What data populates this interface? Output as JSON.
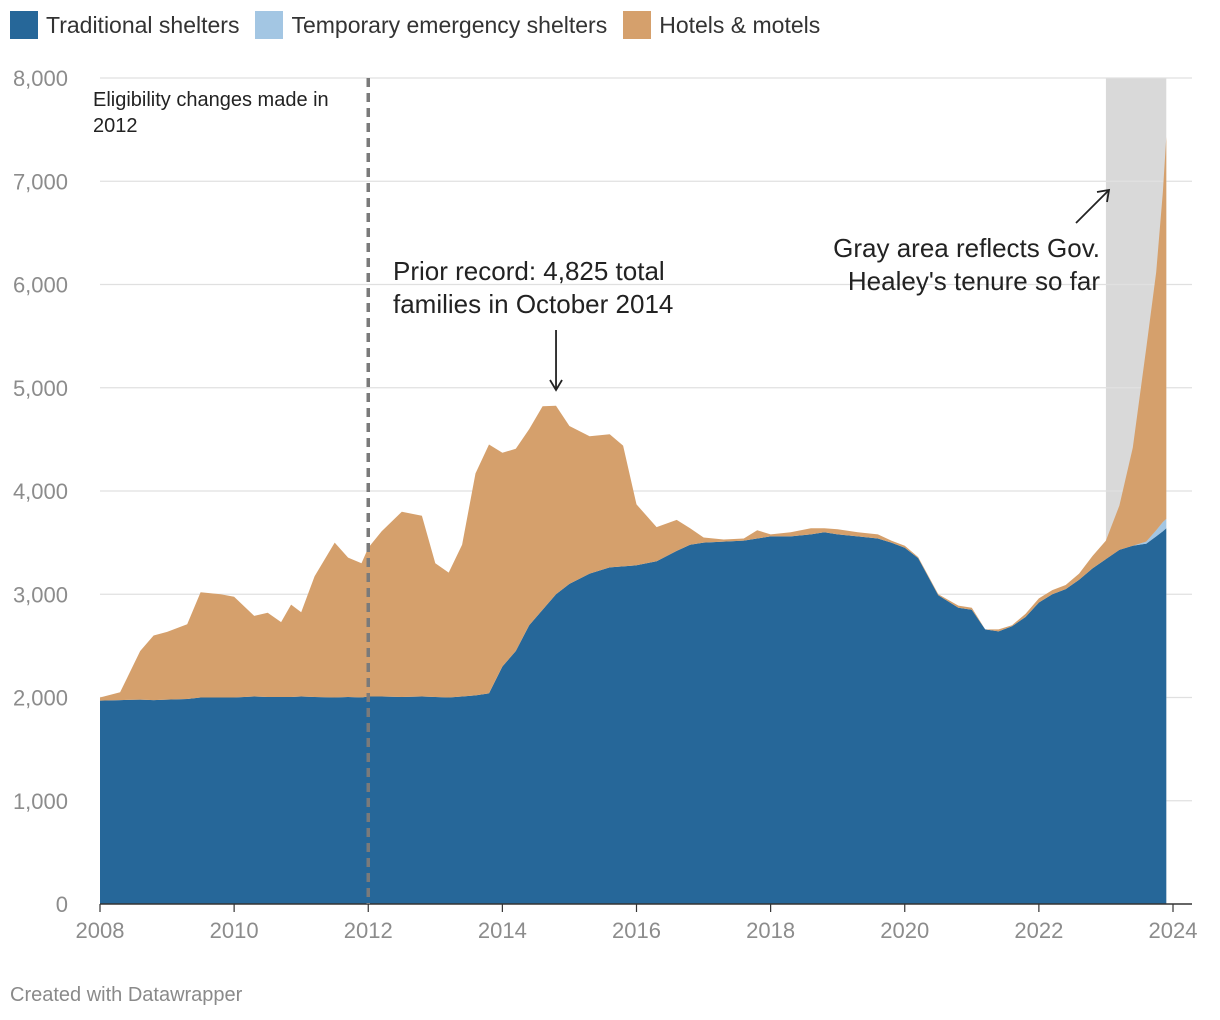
{
  "legend": [
    {
      "label": "Traditional shelters",
      "color": "#266799"
    },
    {
      "label": "Temporary emergency shelters",
      "color": "#a3c6e3"
    },
    {
      "label": "Hotels & motels",
      "color": "#d5a06c"
    }
  ],
  "annotations": {
    "eligibility": "Eligibility changes made in 2012",
    "prior_record": "Prior record: 4,825 total families in October 2014",
    "gray_area": "Gray area reflects Gov. Healey's tenure so far"
  },
  "footer": "Created with Datawrapper",
  "chart_data": {
    "type": "area",
    "stacked": true,
    "title": "",
    "xlabel": "",
    "ylabel": "",
    "xlim": [
      2008,
      2024
    ],
    "ylim": [
      0,
      8000
    ],
    "x_ticks": [
      "2008",
      "2010",
      "2012",
      "2014",
      "2016",
      "2018",
      "2020",
      "2022",
      "2024"
    ],
    "y_ticks": [
      "0",
      "1,000",
      "2,000",
      "3,000",
      "4,000",
      "5,000",
      "6,000",
      "7,000",
      "8,000"
    ],
    "grid": true,
    "highlight_range": [
      2023.0,
      2023.9
    ],
    "reference_line_x": 2012.0,
    "record_point": {
      "x": 2014.8,
      "total": 4825
    },
    "x": [
      2008.0,
      2008.3,
      2008.6,
      2008.8,
      2009.0,
      2009.3,
      2009.5,
      2009.8,
      2010.0,
      2010.3,
      2010.5,
      2010.7,
      2010.85,
      2011.0,
      2011.2,
      2011.5,
      2011.7,
      2011.9,
      2012.0,
      2012.2,
      2012.5,
      2012.8,
      2013.0,
      2013.2,
      2013.4,
      2013.6,
      2013.8,
      2014.0,
      2014.2,
      2014.4,
      2014.6,
      2014.8,
      2015.0,
      2015.3,
      2015.6,
      2015.8,
      2016.0,
      2016.3,
      2016.6,
      2016.8,
      2017.0,
      2017.3,
      2017.6,
      2017.8,
      2018.0,
      2018.3,
      2018.6,
      2018.8,
      2019.0,
      2019.3,
      2019.6,
      2019.8,
      2020.0,
      2020.2,
      2020.5,
      2020.8,
      2021.0,
      2021.2,
      2021.4,
      2021.6,
      2021.8,
      2022.0,
      2022.2,
      2022.4,
      2022.6,
      2022.8,
      2023.0,
      2023.2,
      2023.4,
      2023.6,
      2023.75,
      2023.85,
      2023.9
    ],
    "series": [
      {
        "name": "Traditional shelters",
        "values": [
          1970,
          1975,
          1980,
          1975,
          1980,
          1985,
          2000,
          2000,
          2000,
          2010,
          2005,
          2005,
          2005,
          2010,
          2005,
          2000,
          2005,
          2000,
          2010,
          2010,
          2005,
          2010,
          2005,
          2000,
          2010,
          2020,
          2040,
          2300,
          2450,
          2700,
          2850,
          3000,
          3100,
          3200,
          3260,
          3270,
          3280,
          3320,
          3420,
          3480,
          3500,
          3510,
          3520,
          3540,
          3560,
          3560,
          3580,
          3600,
          3580,
          3560,
          3540,
          3500,
          3450,
          3350,
          2990,
          2870,
          2850,
          2660,
          2640,
          2690,
          2780,
          2920,
          3000,
          3050,
          3140,
          3250,
          3340,
          3430,
          3470,
          3490,
          3560,
          3610,
          3640
        ]
      },
      {
        "name": "Temporary emergency shelters",
        "values": [
          0,
          0,
          0,
          0,
          0,
          0,
          0,
          0,
          0,
          0,
          0,
          0,
          0,
          0,
          0,
          0,
          0,
          0,
          0,
          0,
          0,
          0,
          0,
          0,
          0,
          0,
          0,
          0,
          0,
          0,
          0,
          0,
          0,
          0,
          0,
          0,
          0,
          0,
          0,
          0,
          0,
          0,
          0,
          0,
          0,
          0,
          0,
          0,
          0,
          0,
          0,
          0,
          0,
          0,
          0,
          0,
          0,
          0,
          0,
          0,
          0,
          0,
          0,
          0,
          0,
          0,
          0,
          0,
          0,
          20,
          60,
          90,
          90
        ]
      },
      {
        "name": "Hotels & motels",
        "values": [
          30,
          75,
          470,
          625,
          655,
          725,
          1020,
          1000,
          975,
          780,
          815,
          725,
          895,
          815,
          1170,
          1500,
          1350,
          1300,
          1440,
          1600,
          1795,
          1750,
          1295,
          1210,
          1470,
          2150,
          2410,
          2070,
          1960,
          1900,
          1970,
          1825,
          1530,
          1330,
          1290,
          1170,
          590,
          330,
          300,
          160,
          50,
          20,
          20,
          80,
          20,
          40,
          60,
          40,
          50,
          40,
          40,
          20,
          20,
          10,
          10,
          20,
          20,
          0,
          20,
          10,
          30,
          40,
          40,
          40,
          60,
          120,
          180,
          430,
          950,
          1870,
          2500,
          3200,
          3700
        ]
      }
    ]
  }
}
